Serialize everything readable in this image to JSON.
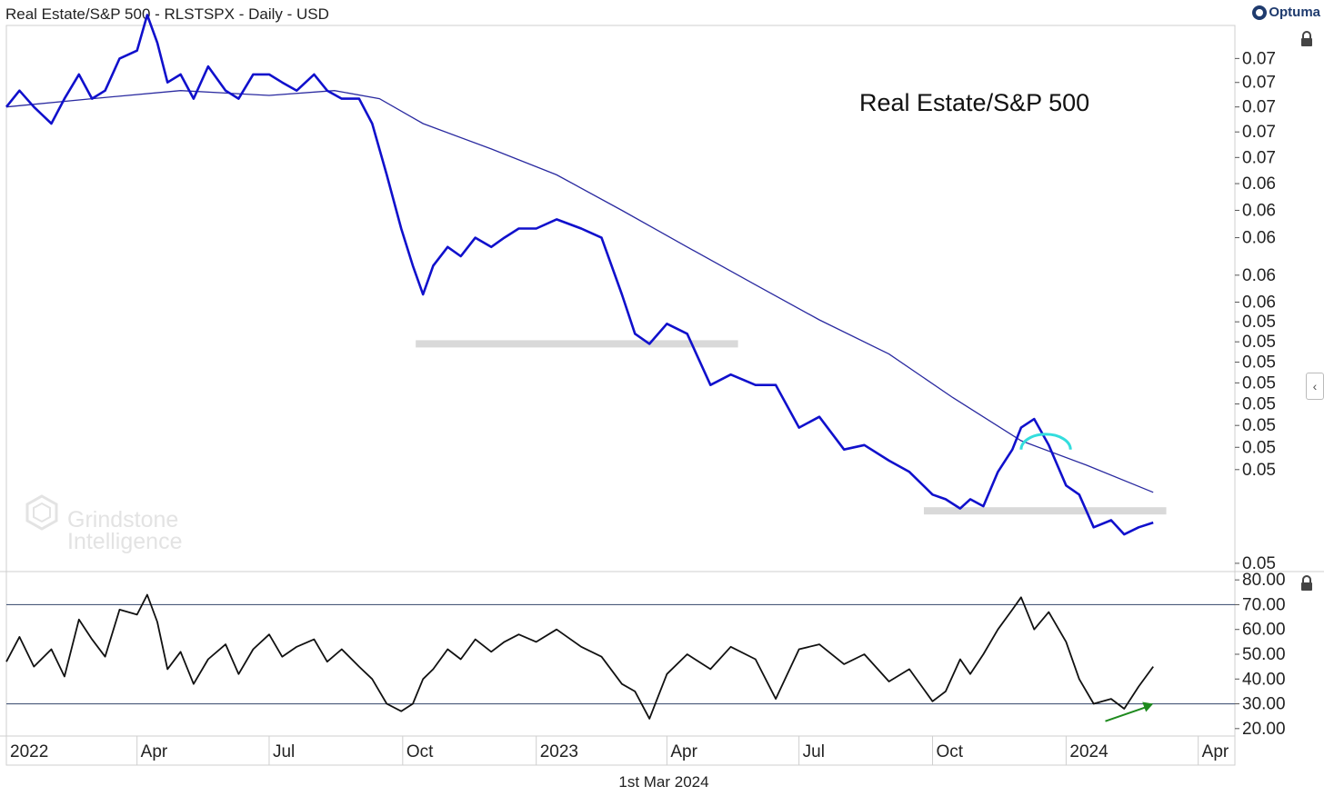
{
  "header": {
    "title": "Real Estate/S&P 500 - RLSTSPX - Daily - USD",
    "brand": "Optuma",
    "date_footer": "1st Mar 2024"
  },
  "watermark": {
    "line1": "Grindstone",
    "line2": "Intelligence"
  },
  "chart_data": [
    {
      "type": "line",
      "title": "Real Estate/S&P 500",
      "y_tick_labels": [
        "0.07",
        "0.07",
        "0.07",
        "0.07",
        "0.07",
        "0.06",
        "0.06",
        "0.06",
        "0.06",
        "0.06",
        "0.05",
        "0.05",
        "0.05",
        "0.05",
        "0.05",
        "0.05",
        "0.05",
        "0.05",
        "0.05"
      ],
      "x_tick_labels": [
        "2022",
        "Apr",
        "Jul",
        "Oct",
        "2023",
        "Apr",
        "Jul",
        "Oct",
        "2024",
        "Apr"
      ],
      "x_range": [
        "2022-01-01",
        "2024-04-25"
      ],
      "ylim": [
        0.0475,
        0.0757
      ],
      "scale": "log",
      "grid": false,
      "series": [
        {
          "style": "thick-blue",
          "color": "#1010cc",
          "x": [
            "2022-01-01",
            "2022-01-10",
            "2022-01-20",
            "2022-02-01",
            "2022-02-10",
            "2022-02-20",
            "2022-03-01",
            "2022-03-10",
            "2022-03-20",
            "2022-04-01",
            "2022-04-08",
            "2022-04-15",
            "2022-04-22",
            "2022-05-01",
            "2022-05-10",
            "2022-05-20",
            "2022-06-01",
            "2022-06-10",
            "2022-06-20",
            "2022-07-01",
            "2022-07-10",
            "2022-07-20",
            "2022-08-01",
            "2022-08-10",
            "2022-08-20",
            "2022-09-01",
            "2022-09-10",
            "2022-09-20",
            "2022-09-30",
            "2022-10-08",
            "2022-10-15",
            "2022-10-22",
            "2022-11-01",
            "2022-11-10",
            "2022-11-20",
            "2022-12-01",
            "2022-12-10",
            "2022-12-20",
            "2023-01-01",
            "2023-01-15",
            "2023-02-01",
            "2023-02-15",
            "2023-03-01",
            "2023-03-10",
            "2023-03-20",
            "2023-04-01",
            "2023-04-15",
            "2023-05-01",
            "2023-05-15",
            "2023-06-01",
            "2023-06-15",
            "2023-07-01",
            "2023-07-15",
            "2023-08-01",
            "2023-08-15",
            "2023-09-01",
            "2023-09-15",
            "2023-10-01",
            "2023-10-10",
            "2023-10-20",
            "2023-10-27",
            "2023-11-05",
            "2023-11-15",
            "2023-11-25",
            "2023-12-01",
            "2023-12-10",
            "2023-12-20",
            "2024-01-01",
            "2024-01-10",
            "2024-01-20",
            "2024-02-01",
            "2024-02-10",
            "2024-02-20",
            "2024-03-01"
          ],
          "values": [
            0.0707,
            0.0717,
            0.0707,
            0.0697,
            0.0712,
            0.0727,
            0.0712,
            0.0717,
            0.0737,
            0.0742,
            0.0765,
            0.0747,
            0.0722,
            0.0727,
            0.0712,
            0.0732,
            0.0717,
            0.0712,
            0.0727,
            0.0727,
            0.0722,
            0.0717,
            0.0727,
            0.0717,
            0.0712,
            0.0712,
            0.0697,
            0.0667,
            0.0637,
            0.0617,
            0.0602,
            0.0617,
            0.0627,
            0.0622,
            0.0632,
            0.0627,
            0.0632,
            0.0637,
            0.0637,
            0.0642,
            0.0637,
            0.0632,
            0.0602,
            0.0582,
            0.0577,
            0.0587,
            0.0582,
            0.0557,
            0.0562,
            0.0557,
            0.0557,
            0.0537,
            0.0542,
            0.0527,
            0.0529,
            0.0522,
            0.0517,
            0.0507,
            0.0505,
            0.0501,
            0.0505,
            0.0502,
            0.0517,
            0.0527,
            0.0537,
            0.0541,
            0.0529,
            0.0511,
            0.0507,
            0.0493,
            0.0496,
            0.049,
            0.0493,
            0.0495
          ]
        },
        {
          "style": "thin-blue",
          "color": "#2a2aa0",
          "x": [
            "2022-01-01",
            "2022-03-01",
            "2022-05-01",
            "2022-07-01",
            "2022-08-15",
            "2022-09-15",
            "2022-10-15",
            "2022-12-01",
            "2023-01-15",
            "2023-03-01",
            "2023-04-15",
            "2023-06-01",
            "2023-07-15",
            "2023-09-01",
            "2023-10-15",
            "2023-12-01",
            "2024-01-15",
            "2024-03-01"
          ],
          "values": [
            0.0707,
            0.0712,
            0.0717,
            0.0714,
            0.0717,
            0.0712,
            0.0697,
            0.0682,
            0.0667,
            0.0647,
            0.0627,
            0.0607,
            0.0589,
            0.0572,
            0.0551,
            0.0531,
            0.052,
            0.0508
          ]
        }
      ],
      "annotations": [
        {
          "kind": "support-band",
          "color": "#d9d9d9",
          "x": [
            "2022-10-10",
            "2023-05-20"
          ],
          "y": 0.0577
        },
        {
          "kind": "support-band",
          "color": "#d9d9d9",
          "x": [
            "2023-09-25",
            "2024-03-10"
          ],
          "y": 0.05
        },
        {
          "kind": "arc",
          "color": "#33dddd",
          "x": [
            "2023-12-01",
            "2024-01-04"
          ],
          "y": 0.0527
        }
      ]
    },
    {
      "type": "line",
      "title": "",
      "y_tick_labels": [
        "80.00",
        "70.00",
        "60.00",
        "50.00",
        "40.00",
        "30.00",
        "20.00"
      ],
      "ylim": [
        17,
        83
      ],
      "reference_lines": [
        70,
        30
      ],
      "grid": false,
      "series": [
        {
          "style": "black",
          "color": "#111111",
          "x": [
            "2022-01-01",
            "2022-01-10",
            "2022-01-20",
            "2022-02-01",
            "2022-02-10",
            "2022-02-20",
            "2022-03-01",
            "2022-03-10",
            "2022-03-20",
            "2022-04-01",
            "2022-04-08",
            "2022-04-15",
            "2022-04-22",
            "2022-05-01",
            "2022-05-10",
            "2022-05-20",
            "2022-06-01",
            "2022-06-10",
            "2022-06-20",
            "2022-07-01",
            "2022-07-10",
            "2022-07-20",
            "2022-08-01",
            "2022-08-10",
            "2022-08-20",
            "2022-09-01",
            "2022-09-10",
            "2022-09-20",
            "2022-09-30",
            "2022-10-08",
            "2022-10-15",
            "2022-10-22",
            "2022-11-01",
            "2022-11-10",
            "2022-11-20",
            "2022-12-01",
            "2022-12-10",
            "2022-12-20",
            "2023-01-01",
            "2023-01-15",
            "2023-02-01",
            "2023-02-15",
            "2023-03-01",
            "2023-03-10",
            "2023-03-20",
            "2023-04-01",
            "2023-04-15",
            "2023-05-01",
            "2023-05-15",
            "2023-06-01",
            "2023-06-15",
            "2023-07-01",
            "2023-07-15",
            "2023-08-01",
            "2023-08-15",
            "2023-09-01",
            "2023-09-15",
            "2023-10-01",
            "2023-10-10",
            "2023-10-20",
            "2023-10-27",
            "2023-11-05",
            "2023-11-15",
            "2023-11-25",
            "2023-12-01",
            "2023-12-10",
            "2023-12-20",
            "2024-01-01",
            "2024-01-10",
            "2024-01-20",
            "2024-02-01",
            "2024-02-10",
            "2024-02-20",
            "2024-03-01"
          ],
          "values": [
            47,
            57,
            45,
            52,
            41,
            64,
            56,
            49,
            68,
            66,
            74,
            63,
            44,
            51,
            38,
            48,
            54,
            42,
            52,
            58,
            49,
            53,
            56,
            47,
            52,
            45,
            40,
            30,
            27,
            30,
            40,
            44,
            52,
            48,
            56,
            51,
            55,
            58,
            55,
            60,
            53,
            49,
            38,
            35,
            24,
            42,
            50,
            44,
            53,
            48,
            32,
            52,
            54,
            46,
            50,
            39,
            44,
            31,
            35,
            48,
            42,
            50,
            60,
            68,
            73,
            60,
            67,
            55,
            40,
            30,
            32,
            28,
            37,
            45
          ]
        }
      ],
      "annotations": [
        {
          "kind": "arrow",
          "color": "#1e8a1e",
          "x": [
            "2024-01-28",
            "2024-03-01"
          ],
          "y": [
            23,
            30
          ]
        }
      ]
    }
  ]
}
